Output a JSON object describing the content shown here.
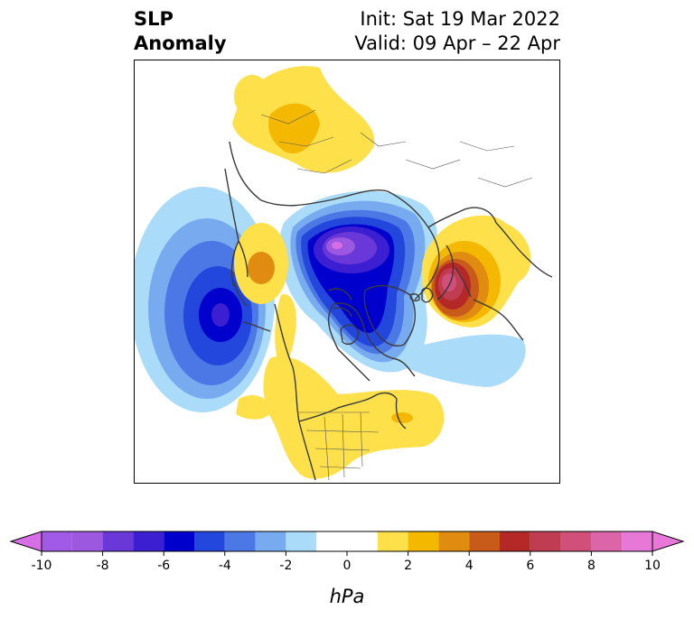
{
  "header": {
    "title_line1": "SLP",
    "title_line2": "Anomaly",
    "init": "Init: Sat 19 Mar 2022",
    "valid": "Valid: 09 Apr – 22 Apr"
  },
  "colorbar": {
    "units": "hPa",
    "tick_labels": [
      "-10",
      "-8",
      "-6",
      "-4",
      "-2",
      "0",
      "2",
      "4",
      "6",
      "8",
      "10"
    ],
    "bins": [
      {
        "from": -10,
        "to": -9,
        "color": "#a05ae6"
      },
      {
        "from": -9,
        "to": -8,
        "color": "#9d58e0"
      },
      {
        "from": -8,
        "to": -7,
        "color": "#6a38d8"
      },
      {
        "from": -7,
        "to": -6,
        "color": "#3b1fd0"
      },
      {
        "from": -6,
        "to": -5,
        "color": "#0000cd"
      },
      {
        "from": -5,
        "to": -4,
        "color": "#2346dc"
      },
      {
        "from": -4,
        "to": -3,
        "color": "#4c78e6"
      },
      {
        "from": -3,
        "to": -2,
        "color": "#78aaf0"
      },
      {
        "from": -2,
        "to": -1,
        "color": "#aadcfa"
      },
      {
        "from": -1,
        "to": 1,
        "color": "#ffffff"
      },
      {
        "from": 1,
        "to": 2,
        "color": "#fde04a"
      },
      {
        "from": 2,
        "to": 3,
        "color": "#f5b800"
      },
      {
        "from": 3,
        "to": 4,
        "color": "#e08c10"
      },
      {
        "from": 4,
        "to": 5,
        "color": "#c85a1a"
      },
      {
        "from": 5,
        "to": 6,
        "color": "#b42828"
      },
      {
        "from": 6,
        "to": 7,
        "color": "#c03c50"
      },
      {
        "from": 7,
        "to": 8,
        "color": "#d0507a"
      },
      {
        "from": 8,
        "to": 9,
        "color": "#dc64a8"
      },
      {
        "from": 9,
        "to": 10,
        "color": "#e878d8"
      }
    ],
    "extend_low_color": "#d86ee6",
    "extend_high_color": "#e878d8"
  }
}
